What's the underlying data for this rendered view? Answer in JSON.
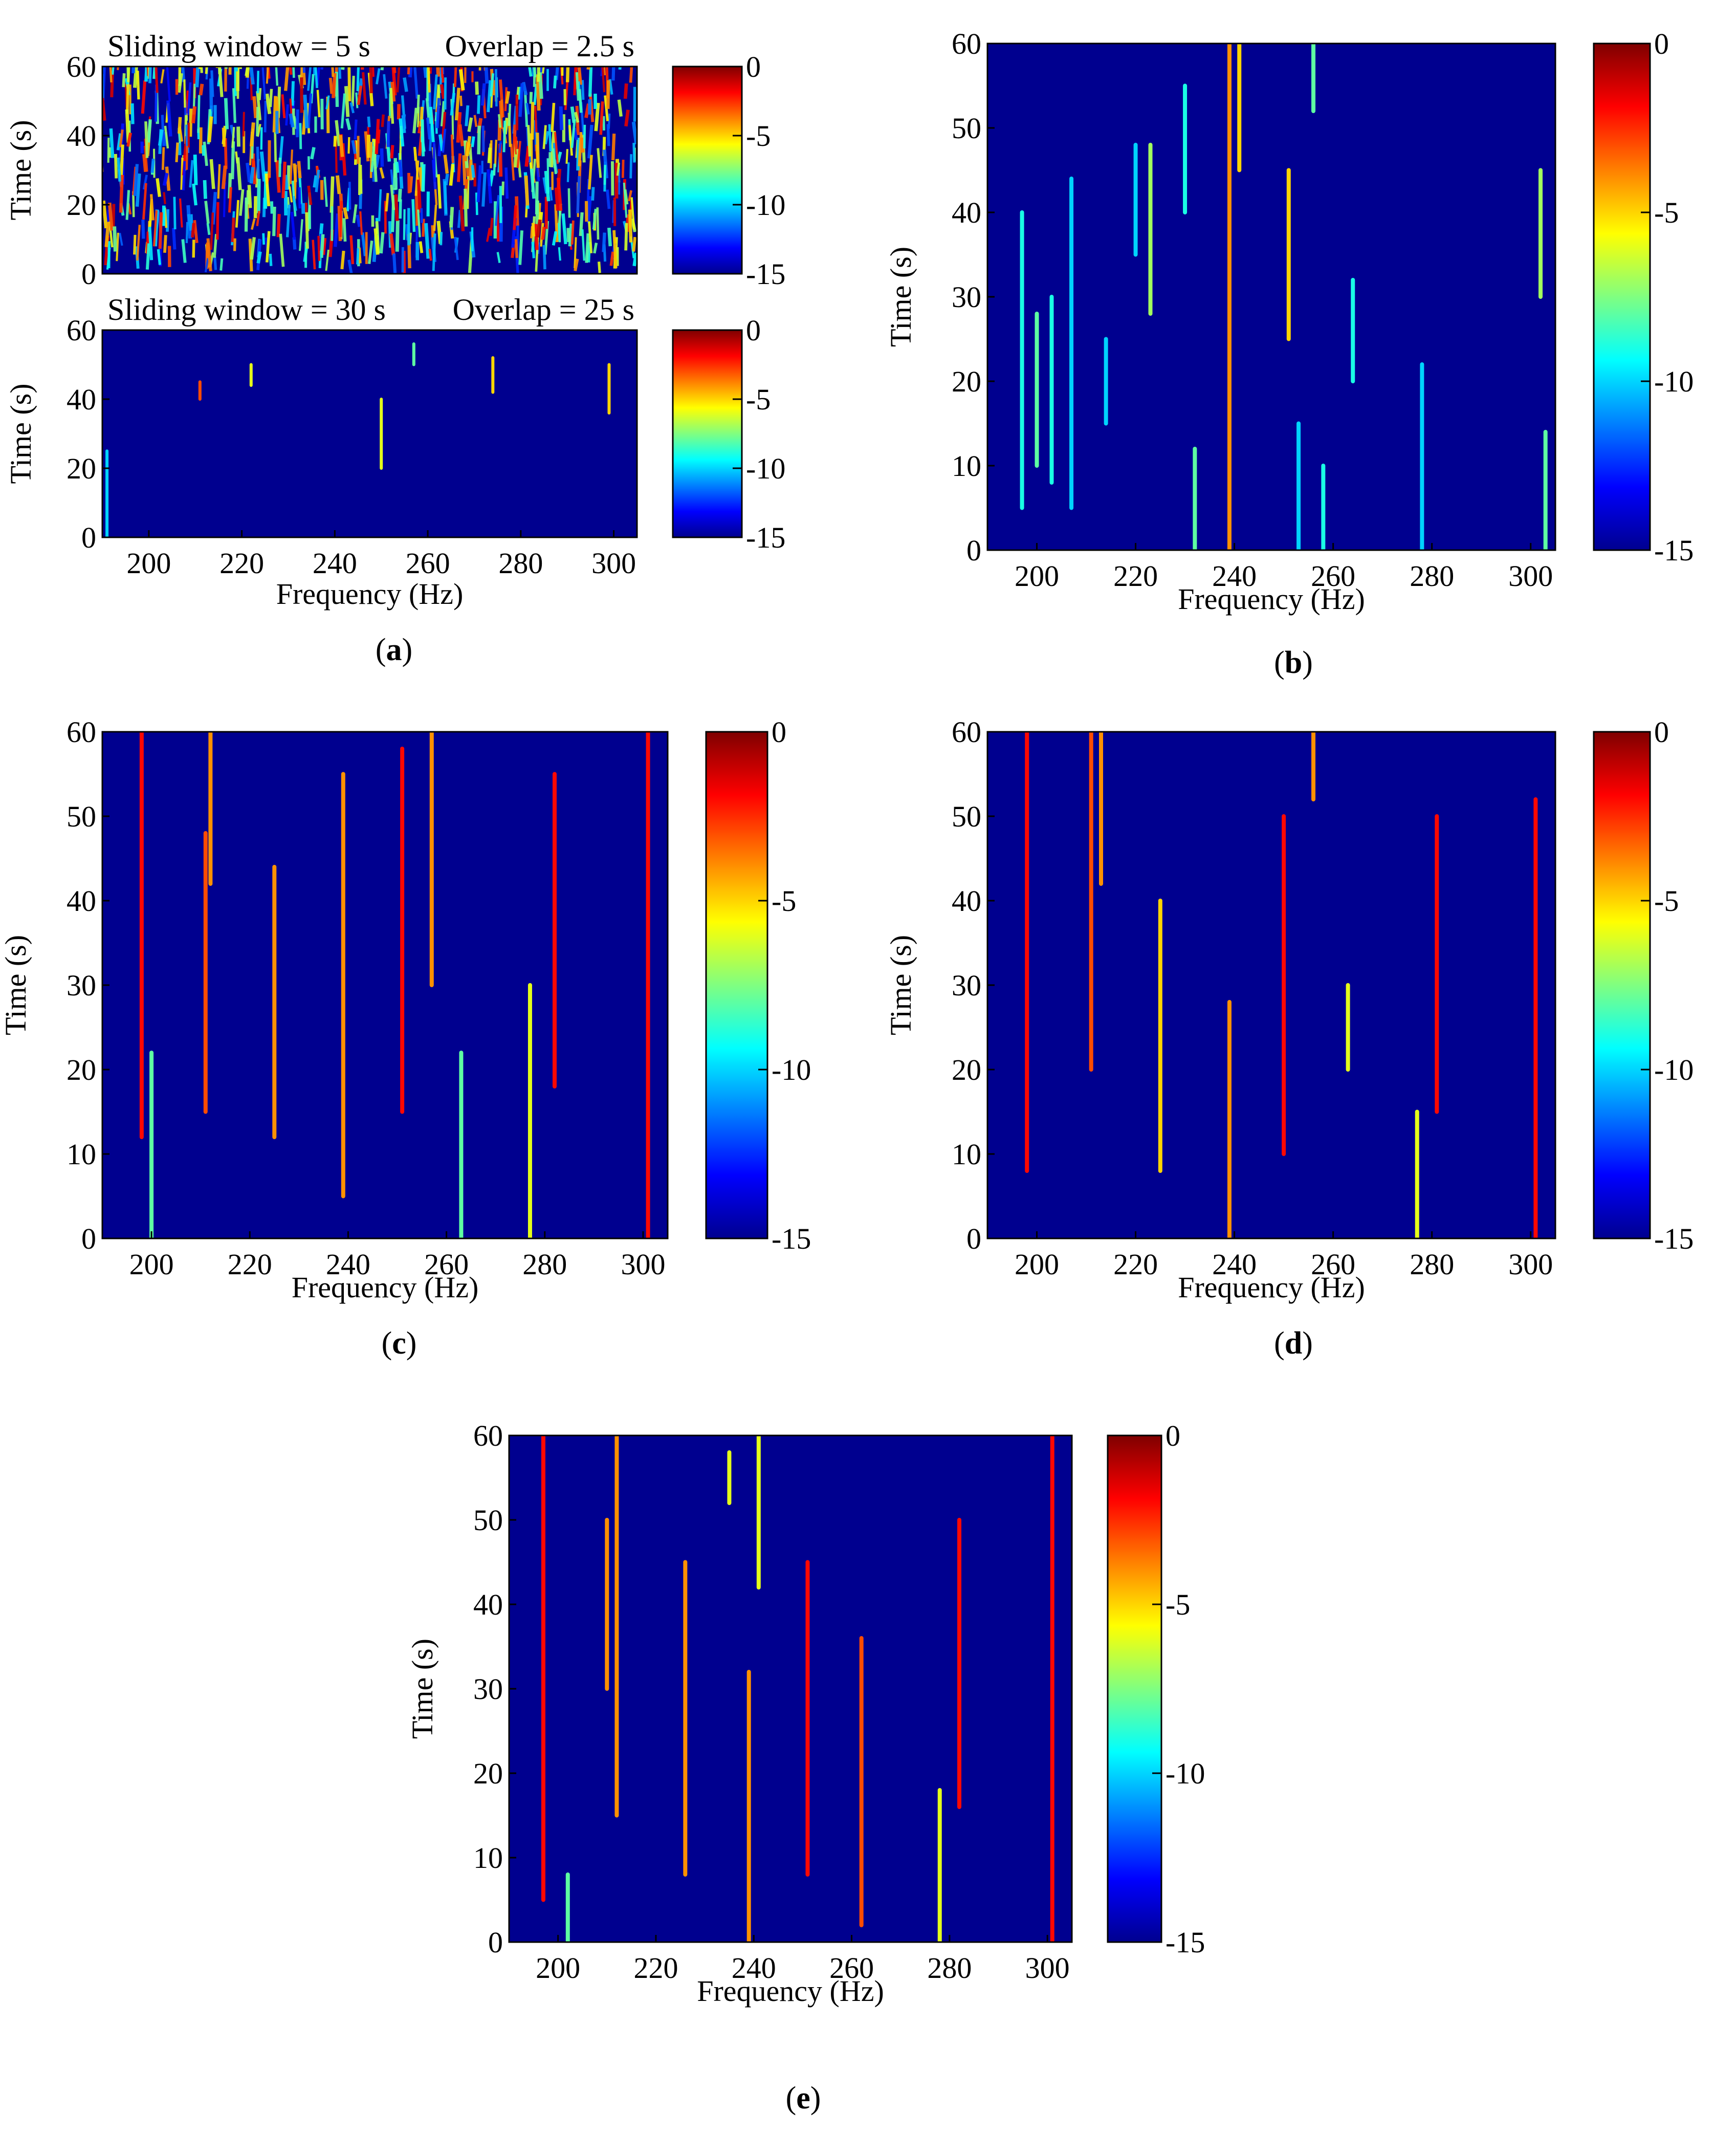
{
  "colorbar": {
    "ticks": [
      "0",
      "-5",
      "-10",
      "-15"
    ],
    "colors": [
      "#7f0000",
      "#ff0000",
      "#ff8000",
      "#ffff00",
      "#80ff80",
      "#00ffff",
      "#0080ff",
      "#0000ff",
      "#00008f"
    ]
  },
  "chart_data": [
    {
      "id": "a",
      "caption": "(a)",
      "type": "heatmap",
      "subplots": [
        {
          "title_left": "Sliding window = 5 s",
          "title_right": "Overlap = 2.5 s",
          "ylabel": "Time (s)",
          "xlabel": "",
          "xlim": [
            190,
            305
          ],
          "ylim": [
            0,
            60
          ],
          "xticks": [],
          "yticks": [
            0,
            20,
            40,
            60
          ],
          "zlim": [
            -15,
            0
          ],
          "pattern": "dense broadband noise",
          "ridges": []
        },
        {
          "title_left": "Sliding window = 30 s",
          "title_right": "Overlap = 25 s",
          "ylabel": "Time (s)",
          "xlabel": "Frequency (Hz)",
          "xlim": [
            190,
            305
          ],
          "ylim": [
            0,
            60
          ],
          "xticks": [
            200,
            220,
            240,
            260,
            280,
            300
          ],
          "yticks": [
            0,
            20,
            40,
            60
          ],
          "zlim": [
            -15,
            0
          ],
          "pattern": "sparse short streaks",
          "ridges": [
            {
              "f": 191,
              "t0": 0,
              "t1": 25,
              "level": -10
            },
            {
              "f": 211,
              "t0": 40,
              "t1": 45,
              "level": -3
            },
            {
              "f": 222,
              "t0": 44,
              "t1": 50,
              "level": -6
            },
            {
              "f": 250,
              "t0": 20,
              "t1": 40,
              "level": -6
            },
            {
              "f": 257,
              "t0": 50,
              "t1": 56,
              "level": -8
            },
            {
              "f": 274,
              "t0": 42,
              "t1": 52,
              "level": -5
            },
            {
              "f": 299,
              "t0": 36,
              "t1": 50,
              "level": -5
            }
          ]
        }
      ]
    },
    {
      "id": "b",
      "caption": "(b)",
      "type": "heatmap",
      "xlabel": "Frequency (Hz)",
      "ylabel": "Time (s)",
      "xlim": [
        190,
        305
      ],
      "ylim": [
        0,
        60
      ],
      "xticks": [
        200,
        220,
        240,
        260,
        280,
        300
      ],
      "yticks": [
        0,
        10,
        20,
        30,
        40,
        50,
        60
      ],
      "zlim": [
        -15,
        0
      ],
      "ridges": [
        {
          "f": 197,
          "t0": 5,
          "t1": 40,
          "level": -9
        },
        {
          "f": 200,
          "t0": 10,
          "t1": 28,
          "level": -8
        },
        {
          "f": 203,
          "t0": 8,
          "t1": 30,
          "level": -9
        },
        {
          "f": 207,
          "t0": 5,
          "t1": 44,
          "level": -10
        },
        {
          "f": 214,
          "t0": 15,
          "t1": 25,
          "level": -10
        },
        {
          "f": 220,
          "t0": 35,
          "t1": 48,
          "level": -10
        },
        {
          "f": 223,
          "t0": 28,
          "t1": 48,
          "level": -7
        },
        {
          "f": 230,
          "t0": 40,
          "t1": 55,
          "level": -9
        },
        {
          "f": 232,
          "t0": 0,
          "t1": 12,
          "level": -8
        },
        {
          "f": 239,
          "t0": 0,
          "t1": 60,
          "level": -4
        },
        {
          "f": 241,
          "t0": 45,
          "t1": 60,
          "level": -5
        },
        {
          "f": 251,
          "t0": 25,
          "t1": 45,
          "level": -5
        },
        {
          "f": 253,
          "t0": 0,
          "t1": 15,
          "level": -10
        },
        {
          "f": 256,
          "t0": 52,
          "t1": 60,
          "level": -8
        },
        {
          "f": 258,
          "t0": 0,
          "t1": 10,
          "level": -9
        },
        {
          "f": 264,
          "t0": 20,
          "t1": 32,
          "level": -9
        },
        {
          "f": 278,
          "t0": 0,
          "t1": 22,
          "level": -10
        },
        {
          "f": 303,
          "t0": 0,
          "t1": 14,
          "level": -8
        },
        {
          "f": 302,
          "t0": 30,
          "t1": 45,
          "level": -7
        }
      ]
    },
    {
      "id": "c",
      "caption": "(c)",
      "type": "heatmap",
      "xlabel": "Frequency (Hz)",
      "ylabel": "Time (s)",
      "xlim": [
        190,
        305
      ],
      "ylim": [
        0,
        60
      ],
      "xticks": [
        200,
        220,
        240,
        260,
        280,
        300
      ],
      "yticks": [
        0,
        10,
        20,
        30,
        40,
        50,
        60
      ],
      "zlim": [
        -15,
        0
      ],
      "ridges": [
        {
          "f": 198,
          "t0": 12,
          "t1": 60,
          "level": -2
        },
        {
          "f": 200,
          "t0": 0,
          "t1": 22,
          "level": -8
        },
        {
          "f": 211,
          "t0": 15,
          "t1": 48,
          "level": -3
        },
        {
          "f": 212,
          "t0": 42,
          "t1": 60,
          "level": -4
        },
        {
          "f": 225,
          "t0": 12,
          "t1": 44,
          "level": -4
        },
        {
          "f": 239,
          "t0": 5,
          "t1": 55,
          "level": -4
        },
        {
          "f": 251,
          "t0": 15,
          "t1": 58,
          "level": -2
        },
        {
          "f": 257,
          "t0": 30,
          "t1": 60,
          "level": -4
        },
        {
          "f": 263,
          "t0": 0,
          "t1": 22,
          "level": -8
        },
        {
          "f": 277,
          "t0": 0,
          "t1": 30,
          "level": -6
        },
        {
          "f": 282,
          "t0": 18,
          "t1": 55,
          "level": -2
        },
        {
          "f": 301,
          "t0": 0,
          "t1": 60,
          "level": -2
        }
      ]
    },
    {
      "id": "d",
      "caption": "(d)",
      "type": "heatmap",
      "xlabel": "Frequency (Hz)",
      "ylabel": "Time (s)",
      "xlim": [
        190,
        305
      ],
      "ylim": [
        0,
        60
      ],
      "xticks": [
        200,
        220,
        240,
        260,
        280,
        300
      ],
      "yticks": [
        0,
        10,
        20,
        30,
        40,
        50,
        60
      ],
      "zlim": [
        -15,
        0
      ],
      "ridges": [
        {
          "f": 198,
          "t0": 8,
          "t1": 60,
          "level": -2
        },
        {
          "f": 211,
          "t0": 20,
          "t1": 60,
          "level": -3
        },
        {
          "f": 213,
          "t0": 42,
          "t1": 60,
          "level": -4
        },
        {
          "f": 225,
          "t0": 8,
          "t1": 40,
          "level": -5
        },
        {
          "f": 239,
          "t0": 0,
          "t1": 28,
          "level": -4
        },
        {
          "f": 250,
          "t0": 10,
          "t1": 50,
          "level": -2
        },
        {
          "f": 256,
          "t0": 52,
          "t1": 60,
          "level": -4
        },
        {
          "f": 263,
          "t0": 20,
          "t1": 30,
          "level": -6
        },
        {
          "f": 277,
          "t0": 0,
          "t1": 15,
          "level": -6
        },
        {
          "f": 281,
          "t0": 15,
          "t1": 50,
          "level": -2
        },
        {
          "f": 301,
          "t0": 0,
          "t1": 52,
          "level": -2
        }
      ]
    },
    {
      "id": "e",
      "caption": "(e)",
      "type": "heatmap",
      "xlabel": "Frequency (Hz)",
      "ylabel": "Time (s)",
      "xlim": [
        190,
        305
      ],
      "ylim": [
        0,
        60
      ],
      "xticks": [
        200,
        220,
        240,
        260,
        280,
        300
      ],
      "yticks": [
        0,
        10,
        20,
        30,
        40,
        50,
        60
      ],
      "zlim": [
        -15,
        0
      ],
      "ridges": [
        {
          "f": 197,
          "t0": 5,
          "t1": 60,
          "level": -2
        },
        {
          "f": 202,
          "t0": 0,
          "t1": 8,
          "level": -8
        },
        {
          "f": 210,
          "t0": 30,
          "t1": 50,
          "level": -4
        },
        {
          "f": 212,
          "t0": 15,
          "t1": 60,
          "level": -4
        },
        {
          "f": 226,
          "t0": 8,
          "t1": 45,
          "level": -4
        },
        {
          "f": 235,
          "t0": 52,
          "t1": 58,
          "level": -6
        },
        {
          "f": 239,
          "t0": 0,
          "t1": 32,
          "level": -4
        },
        {
          "f": 241,
          "t0": 42,
          "t1": 60,
          "level": -6
        },
        {
          "f": 251,
          "t0": 8,
          "t1": 45,
          "level": -2
        },
        {
          "f": 262,
          "t0": 2,
          "t1": 36,
          "level": -3
        },
        {
          "f": 278,
          "t0": 0,
          "t1": 18,
          "level": -6
        },
        {
          "f": 282,
          "t0": 16,
          "t1": 50,
          "level": -2
        },
        {
          "f": 301,
          "t0": 0,
          "t1": 60,
          "level": -2
        }
      ]
    }
  ]
}
